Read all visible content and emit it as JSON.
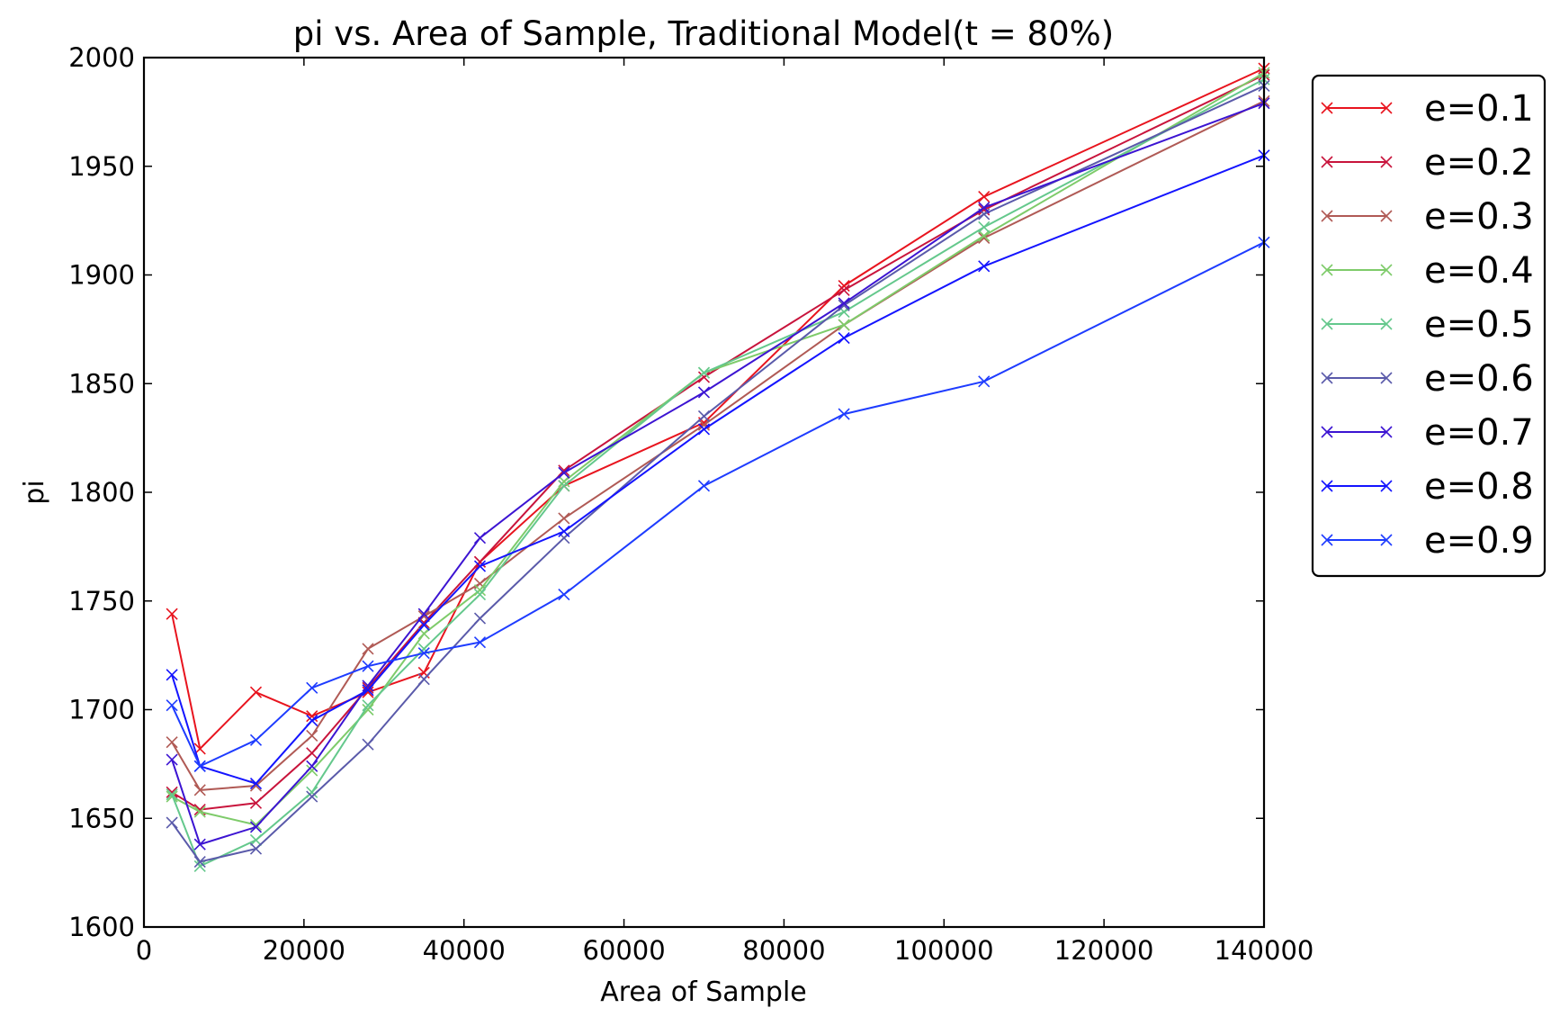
{
  "chart_data": {
    "type": "line",
    "title": "pi vs. Area of Sample, Traditional Model(t = 80%)",
    "xlabel": "Area of Sample",
    "ylabel": "pi",
    "xlim": [
      0,
      140000
    ],
    "ylim": [
      1600,
      2000
    ],
    "x_ticks": [
      0,
      20000,
      40000,
      60000,
      80000,
      100000,
      120000,
      140000
    ],
    "x_tick_labels": [
      "0",
      "20000",
      "40000",
      "60000",
      "80000",
      "100000",
      "120000",
      "140000"
    ],
    "y_ticks": [
      1600,
      1650,
      1700,
      1750,
      1800,
      1850,
      1900,
      1950,
      2000
    ],
    "y_tick_labels": [
      "1600",
      "1650",
      "1700",
      "1750",
      "1800",
      "1850",
      "1900",
      "1950",
      "2000"
    ],
    "grid": false,
    "legend_position": "outside-right-top",
    "marker": "x",
    "x": [
      3500,
      7000,
      14000,
      21000,
      28000,
      35000,
      42000,
      52500,
      70000,
      87500,
      105000,
      140000
    ],
    "series": [
      {
        "name": "e=0.1",
        "color": "#e8141e",
        "values": [
          1744,
          1682,
          1708,
          1697,
          1708,
          1717,
          1768,
          1803,
          1832,
          1895,
          1936,
          1995
        ]
      },
      {
        "name": "e=0.2",
        "color": "#c8143c",
        "values": [
          1662,
          1654,
          1657,
          1680,
          1710,
          1740,
          1768,
          1810,
          1853,
          1893,
          1930,
          1992
        ]
      },
      {
        "name": "e=0.3",
        "color": "#b05a55",
        "values": [
          1685,
          1663,
          1665,
          1688,
          1728,
          1743,
          1758,
          1788,
          1831,
          1877,
          1917,
          1980
        ]
      },
      {
        "name": "e=0.4",
        "color": "#7ecb6a",
        "values": [
          1660,
          1653,
          1647,
          1672,
          1700,
          1735,
          1755,
          1805,
          1855,
          1877,
          1918,
          1993
        ]
      },
      {
        "name": "e=0.5",
        "color": "#64c88c",
        "values": [
          1661,
          1628,
          1640,
          1662,
          1702,
          1728,
          1753,
          1803,
          1855,
          1883,
          1922,
          1990
        ]
      },
      {
        "name": "e=0.6",
        "color": "#5a5aaa",
        "values": [
          1648,
          1630,
          1636,
          1660,
          1684,
          1714,
          1742,
          1779,
          1835,
          1886,
          1928,
          1987
        ]
      },
      {
        "name": "e=0.7",
        "color": "#3c14d2",
        "values": [
          1677,
          1638,
          1646,
          1674,
          1711,
          1744,
          1779,
          1809,
          1846,
          1887,
          1931,
          1979
        ]
      },
      {
        "name": "e=0.8",
        "color": "#1414ff",
        "values": [
          1716,
          1674,
          1666,
          1695,
          1709,
          1739,
          1766,
          1782,
          1829,
          1871,
          1904,
          1955
        ]
      },
      {
        "name": "e=0.9",
        "color": "#1e3cff",
        "values": [
          1702,
          1674,
          1686,
          1710,
          1720,
          1726,
          1731,
          1753,
          1803,
          1836,
          1851,
          1915
        ]
      }
    ]
  }
}
